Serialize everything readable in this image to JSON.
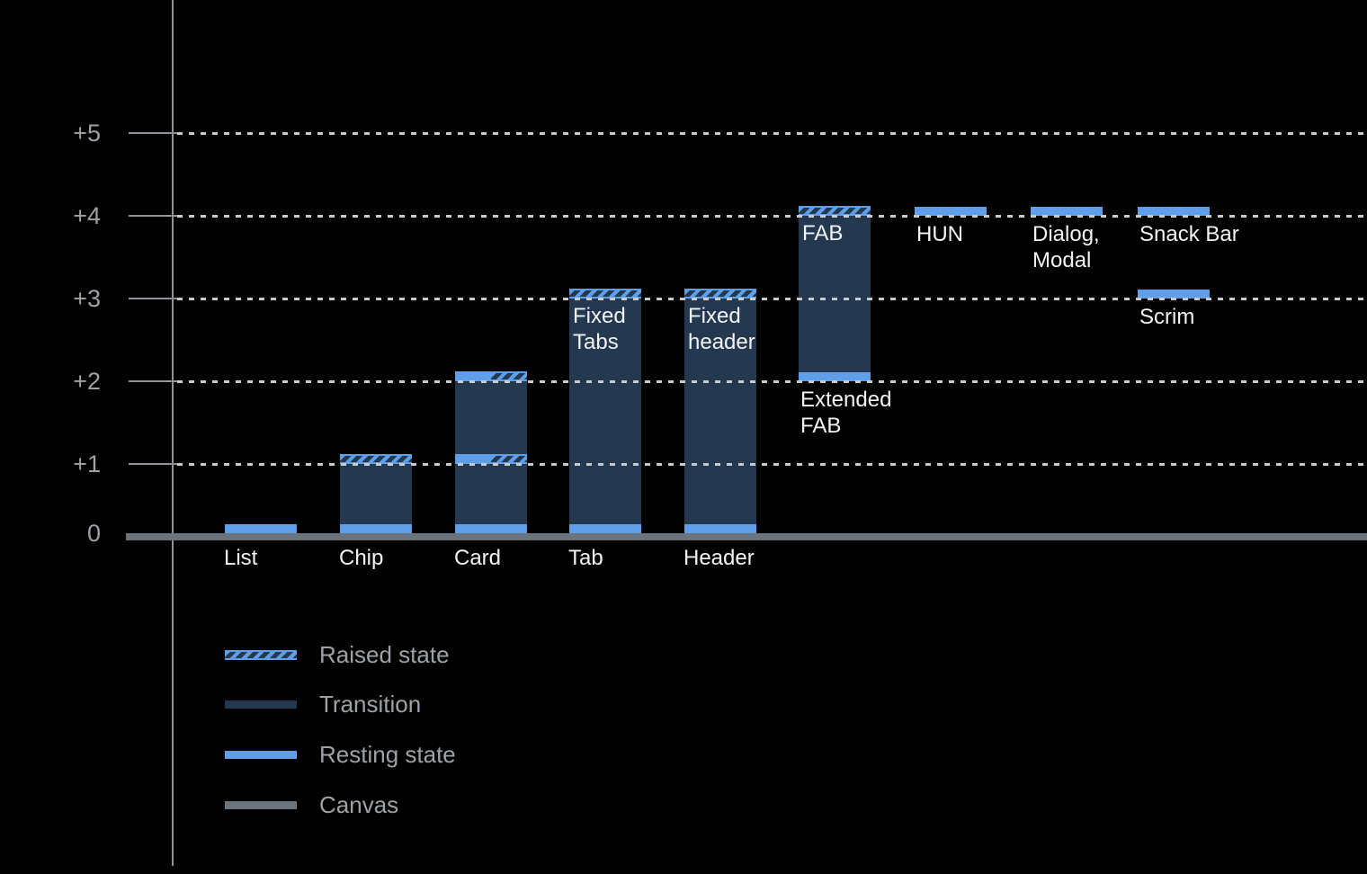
{
  "colors": {
    "background": "#000000",
    "resting": "#5F9EE8",
    "transition": "#243950",
    "canvas": "#6B737C",
    "axis": "#8E9399",
    "grid": "#C9CCCE",
    "text_light": "#F2F3F4",
    "text_muted": "#9DA2A7"
  },
  "chart_data": {
    "type": "bar",
    "subtype": "material-elevation-diagram",
    "title": "",
    "xlabel": "",
    "ylabel": "",
    "ylim": [
      0,
      5.5
    ],
    "grid": "horizontal-dotted",
    "legend_position": "bottom-left",
    "y_ticks": [
      {
        "label": "+5",
        "value": 5
      },
      {
        "label": "+4",
        "value": 4
      },
      {
        "label": "+3",
        "value": 3
      },
      {
        "label": "+2",
        "value": 2
      },
      {
        "label": "+1",
        "value": 1
      },
      {
        "label": "0",
        "value": 0
      }
    ],
    "legend": [
      {
        "label": "Raised state",
        "style": "raised"
      },
      {
        "label": "Transition",
        "style": "transition"
      },
      {
        "label": "Resting state",
        "style": "resting"
      },
      {
        "label": "Canvas",
        "style": "canvas"
      }
    ],
    "bars": [
      {
        "name": "list",
        "col": 0,
        "axis_label": "List",
        "segments": [
          {
            "kind": "resting",
            "from": 0,
            "to": 0.13
          }
        ]
      },
      {
        "name": "chip",
        "col": 1,
        "axis_label": "Chip",
        "segments": [
          {
            "kind": "resting",
            "from": 0,
            "to": 0.13
          },
          {
            "kind": "transition",
            "from": 0.13,
            "to": 1
          },
          {
            "kind": "raised",
            "from": 1,
            "to": 1.12
          }
        ]
      },
      {
        "name": "card",
        "col": 2,
        "axis_label": "Card",
        "segments": [
          {
            "kind": "resting",
            "from": 0,
            "to": 0.13
          },
          {
            "kind": "transition",
            "from": 0.13,
            "to": 1
          },
          {
            "kind": "split",
            "from": 1,
            "to": 1.12
          },
          {
            "kind": "transition",
            "from": 1.12,
            "to": 2
          },
          {
            "kind": "split",
            "from": 2,
            "to": 2.12
          }
        ]
      },
      {
        "name": "tab",
        "col": 3,
        "axis_label": "Tab",
        "inner_label": "Fixed Tabs",
        "segments": [
          {
            "kind": "resting",
            "from": 0,
            "to": 0.13
          },
          {
            "kind": "transition",
            "from": 0.13,
            "to": 3
          },
          {
            "kind": "raised",
            "from": 3,
            "to": 3.12
          }
        ]
      },
      {
        "name": "header",
        "col": 4,
        "axis_label": "Header",
        "inner_label": "Fixed header",
        "segments": [
          {
            "kind": "resting",
            "from": 0,
            "to": 0.13
          },
          {
            "kind": "transition",
            "from": 0.13,
            "to": 3
          },
          {
            "kind": "raised",
            "from": 3,
            "to": 3.12
          }
        ]
      },
      {
        "name": "extended-fab",
        "col": 5,
        "inner_label": "FAB",
        "below_label": "Extended FAB",
        "segments": [
          {
            "kind": "resting",
            "from": 2,
            "to": 2.11
          },
          {
            "kind": "transition",
            "from": 2.11,
            "to": 4
          },
          {
            "kind": "raised",
            "from": 4,
            "to": 4.12
          }
        ]
      },
      {
        "name": "hun",
        "col": 6,
        "below_label": "HUN",
        "segments": [
          {
            "kind": "resting",
            "from": 4,
            "to": 4.11
          }
        ]
      },
      {
        "name": "dialog-modal",
        "col": 7,
        "below_label": "Dialog, Modal",
        "segments": [
          {
            "kind": "resting",
            "from": 4,
            "to": 4.11
          }
        ]
      },
      {
        "name": "snack-bar",
        "col": 8,
        "below_label": "Snack Bar",
        "segments": [
          {
            "kind": "resting",
            "from": 4,
            "to": 4.11
          }
        ]
      },
      {
        "name": "scrim",
        "col": 8,
        "below_label": "Scrim",
        "segments": [
          {
            "kind": "resting",
            "from": 3,
            "to": 3.11
          }
        ]
      }
    ]
  }
}
